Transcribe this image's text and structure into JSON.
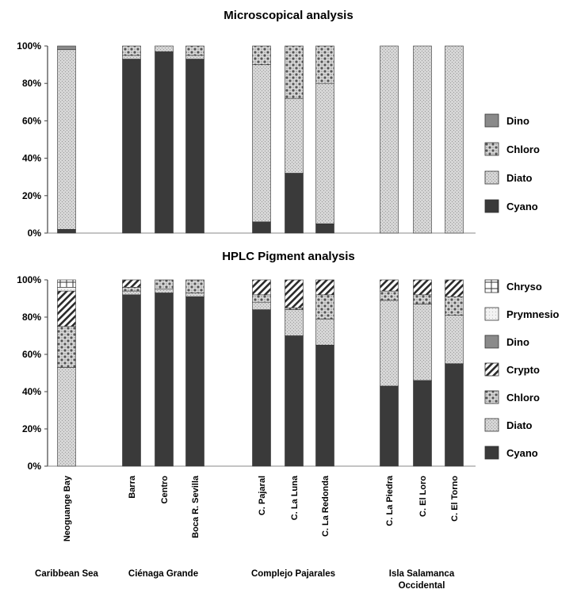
{
  "chart_data": [
    {
      "type": "bar",
      "stacked": true,
      "title": "Microscopical analysis",
      "categories": [
        "Neoguange Bay",
        "Barra",
        "Centro",
        "Boca R. Sevilla",
        "C. Pajaral",
        "C. La Luna",
        "C. La Redonda",
        "C. La Piedra",
        "C. El Loro",
        "C. El Torno"
      ],
      "ylim": [
        0,
        100
      ],
      "y_ticks": [
        "0%",
        "20%",
        "40%",
        "60%",
        "80%",
        "100%"
      ],
      "legend_position": "right",
      "series": [
        {
          "name": "Cyano",
          "color": "#3a3a3a",
          "values": [
            2,
            93,
            97,
            93,
            6,
            32,
            5,
            0,
            0,
            0
          ]
        },
        {
          "name": "Diato",
          "color": "#cfcfcf",
          "values": [
            96,
            2,
            3,
            2,
            84,
            40,
            75,
            100,
            100,
            100
          ]
        },
        {
          "name": "Chloro",
          "color": "#bcbcbc",
          "values": [
            0,
            5,
            0,
            5,
            10,
            28,
            20,
            0,
            0,
            0
          ]
        },
        {
          "name": "Dino",
          "color": "#8a8a8a",
          "values": [
            2,
            0,
            0,
            0,
            0,
            0,
            0,
            0,
            0,
            0
          ]
        }
      ]
    },
    {
      "type": "bar",
      "stacked": true,
      "title": "HPLC Pigment analysis",
      "categories": [
        "Neoguange Bay",
        "Barra",
        "Centro",
        "Boca R. Sevilla",
        "C. Pajaral",
        "C. La Luna",
        "C. La Redonda",
        "C. La Piedra",
        "C. El Loro",
        "C. El Torno"
      ],
      "ylim": [
        0,
        100
      ],
      "y_ticks": [
        "0%",
        "20%",
        "40%",
        "60%",
        "80%",
        "100%"
      ],
      "legend_position": "right",
      "series": [
        {
          "name": "Cyano",
          "color": "#3a3a3a",
          "values": [
            0,
            92,
            93,
            91,
            84,
            70,
            65,
            43,
            46,
            55
          ]
        },
        {
          "name": "Diato",
          "color": "#cfcfcf",
          "values": [
            53,
            2,
            2,
            2,
            4,
            14,
            14,
            46,
            41,
            26
          ]
        },
        {
          "name": "Chloro",
          "color": "#bcbcbc",
          "values": [
            22,
            2,
            5,
            7,
            4,
            1,
            13,
            5,
            5,
            10
          ]
        },
        {
          "name": "Crypto",
          "color": "#ffffff",
          "values": [
            19,
            4,
            0,
            0,
            8,
            15,
            8,
            6,
            8,
            9
          ]
        },
        {
          "name": "Dino",
          "color": "#8a8a8a",
          "values": [
            0,
            0,
            0,
            0,
            0,
            0,
            0,
            0,
            0,
            0
          ]
        },
        {
          "name": "Prymnesio",
          "color": "#e8e8e8",
          "values": [
            2,
            0,
            0,
            0,
            0,
            0,
            0,
            0,
            0,
            0
          ]
        },
        {
          "name": "Chryso",
          "color": "#ffffff",
          "values": [
            4,
            0,
            0,
            0,
            0,
            0,
            0,
            0,
            0,
            0
          ]
        }
      ]
    }
  ],
  "groups": [
    {
      "label": "Caribbean Sea",
      "members": [
        0
      ]
    },
    {
      "label": "Ciénaga Grande",
      "members": [
        1,
        2,
        3
      ]
    },
    {
      "label": "Complejo Pajarales",
      "members": [
        4,
        5,
        6
      ]
    },
    {
      "label": "Isla Salamanca\nOccidental",
      "members": [
        7,
        8,
        9
      ]
    }
  ]
}
